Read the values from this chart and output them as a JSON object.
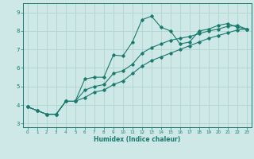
{
  "xlabel": "Humidex (Indice chaleur)",
  "line_color": "#1a7a6e",
  "background_color": "#cde8e6",
  "grid_color": "#b0d4d1",
  "xlim": [
    -0.5,
    23.5
  ],
  "ylim": [
    2.8,
    9.5
  ],
  "xticks": [
    0,
    1,
    2,
    3,
    4,
    5,
    6,
    7,
    8,
    9,
    10,
    11,
    12,
    13,
    14,
    15,
    16,
    17,
    18,
    19,
    20,
    21,
    22,
    23
  ],
  "yticks": [
    3,
    4,
    5,
    6,
    7,
    8,
    9
  ],
  "line1_x": [
    0,
    1,
    2,
    3,
    4,
    5,
    6,
    7,
    8,
    9,
    10,
    11,
    12,
    13,
    14,
    15,
    16,
    17,
    18,
    19,
    20,
    21,
    22,
    23
  ],
  "line1_y": [
    3.9,
    3.7,
    3.5,
    3.5,
    4.2,
    4.2,
    5.4,
    5.5,
    5.5,
    6.7,
    6.65,
    7.4,
    8.6,
    8.8,
    8.2,
    8.0,
    7.3,
    7.4,
    8.0,
    8.1,
    8.3,
    8.4,
    8.2,
    8.1
  ],
  "line2_x": [
    0,
    1,
    2,
    3,
    4,
    5,
    6,
    7,
    8,
    9,
    10,
    11,
    12,
    13,
    14,
    15,
    16,
    17,
    18,
    19,
    20,
    21,
    22,
    23
  ],
  "line2_y": [
    3.9,
    3.7,
    3.5,
    3.5,
    4.2,
    4.2,
    4.8,
    5.0,
    5.1,
    5.7,
    5.85,
    6.2,
    6.8,
    7.1,
    7.3,
    7.5,
    7.6,
    7.7,
    7.85,
    8.0,
    8.1,
    8.25,
    8.3,
    8.1
  ],
  "line3_x": [
    0,
    1,
    2,
    3,
    4,
    5,
    6,
    7,
    8,
    9,
    10,
    11,
    12,
    13,
    14,
    15,
    16,
    17,
    18,
    19,
    20,
    21,
    22,
    23
  ],
  "line3_y": [
    3.9,
    3.7,
    3.5,
    3.5,
    4.2,
    4.2,
    4.4,
    4.7,
    4.8,
    5.1,
    5.3,
    5.7,
    6.1,
    6.4,
    6.6,
    6.8,
    7.0,
    7.2,
    7.4,
    7.6,
    7.75,
    7.9,
    8.05,
    8.1
  ]
}
